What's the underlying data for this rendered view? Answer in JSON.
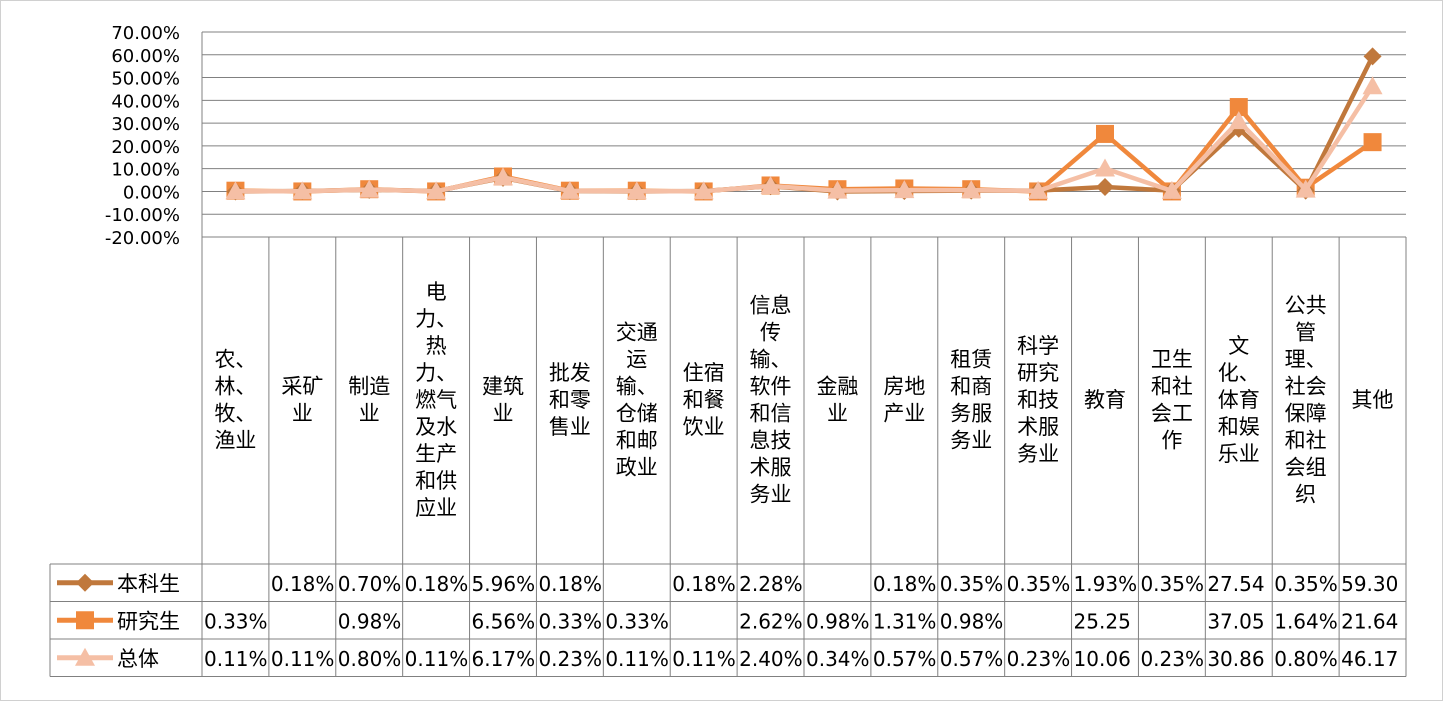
{
  "chart_data": {
    "type": "line",
    "categories": [
      "农、林、牧、渔业",
      "采矿业",
      "制造业",
      "电力、热力、燃气及水生产和供应业",
      "建筑业",
      "批发和零售业",
      "交通运输、仓储和邮政业",
      "住宿和餐饮业",
      "信息传输、软件和信息技术服务业",
      "金融业",
      "房地产业",
      "租赁和商务服务业",
      "科学研究和技术服务业",
      "教育",
      "卫生和社会工作",
      "文化、体育和娱乐业",
      "公共管理、社会保障和社会组织",
      "其他"
    ],
    "category_lines": [
      [
        "农、",
        "林、",
        "牧、",
        "渔业"
      ],
      [
        "采矿",
        "业"
      ],
      [
        "制造",
        "业"
      ],
      [
        "电",
        "力、",
        "热",
        "力、",
        "燃气",
        "及水",
        "生产",
        "和供",
        "应业"
      ],
      [
        "建筑",
        "业"
      ],
      [
        "批发",
        "和零",
        "售业"
      ],
      [
        "交通",
        "运",
        "输、",
        "仓储",
        "和邮",
        "政业"
      ],
      [
        "住宿",
        "和餐",
        "饮业"
      ],
      [
        "信息",
        "传",
        "输、",
        "软件",
        "和信",
        "息技",
        "术服",
        "务业"
      ],
      [
        "金融",
        "业"
      ],
      [
        "房地",
        "产业"
      ],
      [
        "租赁",
        "和商",
        "务服",
        "务业"
      ],
      [
        "科学",
        "研究",
        "和技",
        "术服",
        "务业"
      ],
      [
        "教育"
      ],
      [
        "卫生",
        "和社",
        "会工",
        "作"
      ],
      [
        "文",
        "化、",
        "体育",
        "和娱",
        "乐业"
      ],
      [
        "公共",
        "管",
        "理、",
        "社会",
        "保障",
        "和社",
        "会组",
        "织"
      ],
      [
        "其他"
      ]
    ],
    "series": [
      {
        "name": "本科生",
        "color": "#C0783C",
        "marker": "diamond",
        "values": [
          0,
          0.18,
          0.7,
          0.18,
          5.96,
          0.18,
          0,
          0.18,
          2.28,
          0,
          0.18,
          0.35,
          0.35,
          1.93,
          0.35,
          27.54,
          0.35,
          59.3
        ],
        "labels": [
          "",
          "0.18%",
          "0.70%",
          "0.18%",
          "5.96%",
          "0.18%",
          "",
          "0.18%",
          "2.28%",
          "",
          "0.18%",
          "0.35%",
          "0.35%",
          "1.93%",
          "0.35%",
          "27.54",
          "0.35%",
          "59.30"
        ]
      },
      {
        "name": "研究生",
        "color": "#F0883C",
        "marker": "square",
        "values": [
          0.33,
          0,
          0.98,
          0,
          6.56,
          0.33,
          0.33,
          0,
          2.62,
          0.98,
          1.31,
          0.98,
          0,
          25.25,
          0,
          37.05,
          1.64,
          21.64
        ],
        "labels": [
          "0.33%",
          "",
          "0.98%",
          "",
          "6.56%",
          "0.33%",
          "0.33%",
          "",
          "2.62%",
          "0.98%",
          "1.31%",
          "0.98%",
          "",
          "25.25",
          "",
          "37.05",
          "1.64%",
          "21.64"
        ]
      },
      {
        "name": "总体",
        "color": "#F5BFA5",
        "marker": "triangle",
        "values": [
          0.11,
          0.11,
          0.8,
          0.11,
          6.17,
          0.23,
          0.11,
          0.11,
          2.4,
          0.34,
          0.57,
          0.57,
          0.23,
          10.06,
          0.23,
          30.86,
          0.8,
          46.17
        ],
        "labels": [
          "0.11%",
          "0.11%",
          "0.80%",
          "0.11%",
          "6.17%",
          "0.23%",
          "0.11%",
          "0.11%",
          "2.40%",
          "0.34%",
          "0.57%",
          "0.57%",
          "0.23%",
          "10.06",
          "0.23%",
          "30.86",
          "0.80%",
          "46.17"
        ]
      }
    ],
    "y_ticks": [
      "70.00%",
      "60.00%",
      "50.00%",
      "40.00%",
      "30.00%",
      "20.00%",
      "10.00%",
      "0.00%",
      "-10.00%",
      "-20.00%"
    ],
    "ylim": [
      -20,
      70
    ],
    "grid": true,
    "legend": "data-table-left"
  }
}
